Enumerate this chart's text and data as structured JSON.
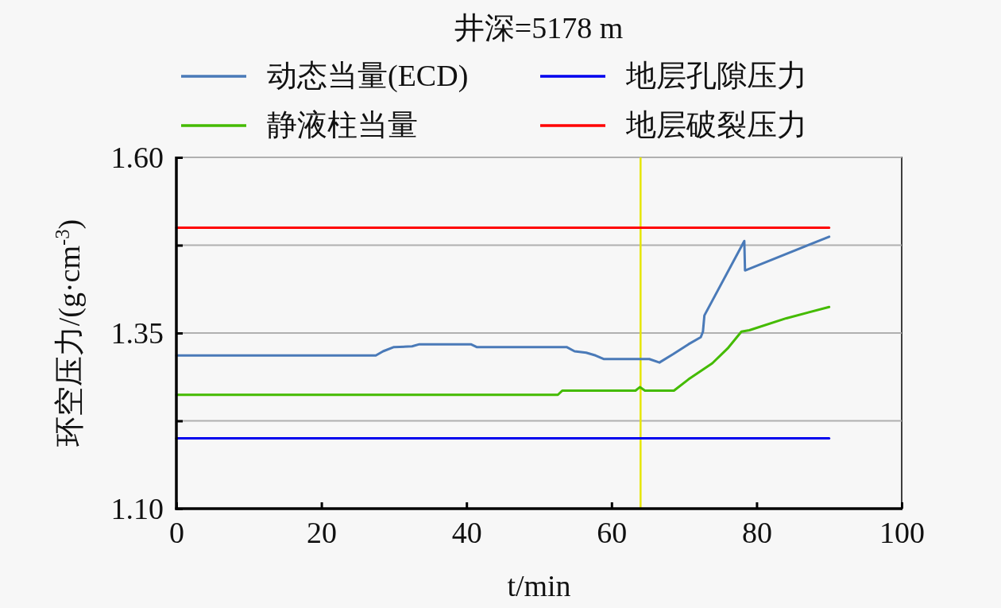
{
  "chart_data": {
    "type": "line",
    "title": "井深=5178 m",
    "xlabel": "t/min",
    "ylabel": "环空压力/(g·cm$^{-3}$)",
    "xlim": [
      0,
      100
    ],
    "xticks": [
      0,
      20,
      40,
      60,
      80,
      100
    ],
    "ylim": [
      1.1,
      1.6
    ],
    "yticks": [
      {
        "value": 1.1,
        "label": "1.10"
      },
      {
        "value": 1.225,
        "label": null
      },
      1.35,
      {
        "value": 1.475,
        "label": null
      },
      {
        "value": 1.6,
        "label": "1.60"
      }
    ],
    "grid": "y",
    "legend": "top",
    "line_style": "solid",
    "marker": "none",
    "ref_lines": [
      {
        "axis": "x",
        "value": 64,
        "color": "#e6e600"
      }
    ],
    "series": [
      {
        "name": "动态当量(ECD)",
        "color": "#4a7ab8",
        "x": [
          0,
          27.5,
          28.5,
          30,
          32.5,
          33.5,
          40.6,
          41.4,
          53.8,
          54.9,
          56.5,
          57.8,
          58.9,
          65.2,
          66.6,
          68.5,
          70.6,
          72.3,
          72.6,
          72.8,
          78.3,
          78.4,
          90
        ],
        "values": [
          1.318,
          1.318,
          1.324,
          1.33,
          1.331,
          1.334,
          1.334,
          1.33,
          1.33,
          1.324,
          1.322,
          1.318,
          1.313,
          1.313,
          1.308,
          1.32,
          1.334,
          1.344,
          1.352,
          1.375,
          1.481,
          1.439,
          1.487
        ]
      },
      {
        "name": "地层孔隙压力",
        "color": "#0000ee",
        "x": [
          0,
          90
        ],
        "values": [
          1.2,
          1.2
        ]
      },
      {
        "name": "静液柱当量",
        "color": "#44bb00",
        "x": [
          0,
          52.6,
          53.2,
          63.3,
          63.9,
          64.6,
          68.6,
          70.6,
          73.9,
          76,
          77.9,
          79,
          84.1,
          90
        ],
        "values": [
          1.262,
          1.262,
          1.268,
          1.268,
          1.273,
          1.268,
          1.268,
          1.284,
          1.307,
          1.328,
          1.352,
          1.354,
          1.371,
          1.387
        ]
      },
      {
        "name": "地层破裂压力",
        "color": "#ff0000",
        "x": [
          0,
          90
        ],
        "values": [
          1.5,
          1.5
        ]
      }
    ]
  }
}
